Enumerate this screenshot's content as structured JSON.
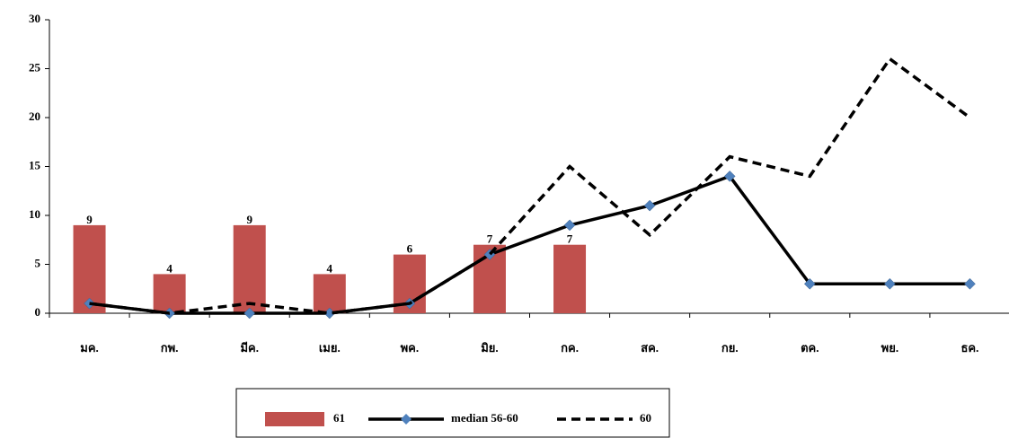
{
  "chart_data": {
    "type": "bar-line",
    "categories": [
      "มค.",
      "กพ.",
      "มีค.",
      "เมย.",
      "พค.",
      "มิย.",
      "กค.",
      "สค.",
      "กย.",
      "ตค.",
      "พย.",
      "ธค."
    ],
    "series": [
      {
        "name": "61",
        "type": "bar",
        "color": "#c0504d",
        "values": [
          9,
          4,
          9,
          4,
          6,
          7,
          7,
          null,
          null,
          null,
          null,
          null
        ]
      },
      {
        "name": "median 56-60",
        "type": "line",
        "color": "#000000",
        "marker_color": "#4f81bd",
        "values": [
          1,
          0,
          0,
          0,
          1,
          6,
          9,
          11,
          14,
          3,
          3,
          3
        ]
      },
      {
        "name": "60",
        "type": "dashed-line",
        "color": "#000000",
        "values": [
          1,
          0,
          1,
          0,
          1,
          6,
          15,
          8,
          16,
          14,
          26,
          20
        ]
      }
    ],
    "ylim": [
      0,
      30
    ],
    "yticks": [
      0,
      5,
      10,
      15,
      20,
      25,
      30
    ],
    "grid": false,
    "legend": "bottom"
  }
}
